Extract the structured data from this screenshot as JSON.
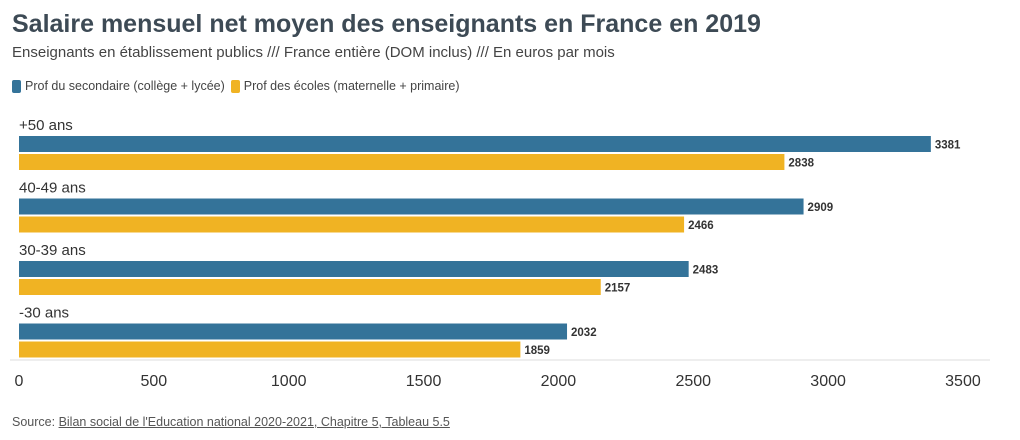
{
  "header": {
    "title": "Salaire mensuel net moyen des enseignants en France en 2019",
    "subtitle": "Enseignants en établissement publics /// France entière (DOM inclus) /// En euros par mois"
  },
  "legend": {
    "items": [
      {
        "label": "Prof du secondaire (collège + lycée)",
        "color": "#347399"
      },
      {
        "label": "Prof des écoles (maternelle + primaire)",
        "color": "#f0b323"
      }
    ]
  },
  "chart_data": {
    "type": "bar",
    "orientation": "horizontal",
    "title": "Salaire mensuel net moyen des enseignants en France en 2019",
    "subtitle": "Enseignants en établissement publics /// France entière (DOM inclus) /// En euros par mois",
    "categories": [
      "+50 ans",
      "40-49 ans",
      "30-39 ans",
      "-30 ans"
    ],
    "series": [
      {
        "name": "Prof du secondaire (collège + lycée)",
        "color": "#347399",
        "values": [
          3381,
          2909,
          2483,
          2032
        ]
      },
      {
        "name": "Prof des écoles (maternelle + primaire)",
        "color": "#f0b323",
        "values": [
          2838,
          2466,
          2157,
          1859
        ]
      }
    ],
    "xlim": [
      0,
      3600
    ],
    "xticks": [
      0,
      500,
      1000,
      1500,
      2000,
      2500,
      3000,
      3500
    ],
    "xlabel": "",
    "ylabel": "",
    "grid": false,
    "legend_position": "top-left",
    "data_labels": true
  },
  "footer": {
    "source_prefix": "Source: ",
    "source_link": "Bilan social de l'Education national 2020-2021, Chapitre 5, Tableau 5.5"
  }
}
